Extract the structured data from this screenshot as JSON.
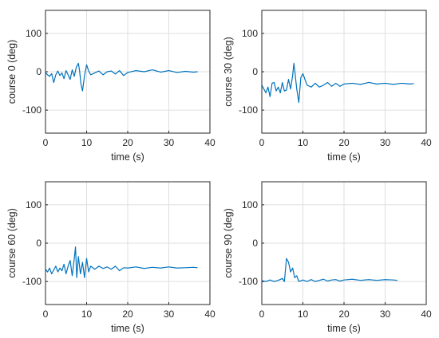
{
  "chart_data": [
    {
      "type": "line",
      "title": "",
      "xlabel": "time (s)",
      "ylabel": "course 0 (deg)",
      "xlim": [
        0,
        40
      ],
      "ylim": [
        -160,
        160
      ],
      "xticks": [
        0,
        10,
        20,
        30,
        40
      ],
      "yticks": [
        100,
        0,
        -100
      ],
      "grid": true,
      "series": [
        {
          "color": "#0072bd",
          "x": [
            0,
            0.5,
            1,
            1.5,
            2,
            2.5,
            3,
            3.5,
            4,
            4.5,
            5,
            5.5,
            6,
            6.5,
            7,
            7.5,
            8,
            8.3,
            8.6,
            9,
            9.5,
            10,
            10.5,
            11,
            12,
            13,
            14,
            15,
            16,
            17,
            18,
            19,
            20,
            22,
            24,
            26,
            28,
            30,
            32,
            34,
            36,
            37
          ],
          "y": [
            -2,
            -8,
            -12,
            -5,
            -28,
            -8,
            2,
            -10,
            -3,
            -18,
            3,
            -8,
            -20,
            5,
            -12,
            12,
            22,
            2,
            -30,
            -50,
            -10,
            18,
            2,
            -8,
            -3,
            2,
            -8,
            0,
            2,
            -6,
            3,
            -10,
            -2,
            3,
            0,
            5,
            -1,
            3,
            -2,
            1,
            -1,
            0
          ]
        }
      ]
    },
    {
      "type": "line",
      "title": "",
      "xlabel": "time (s)",
      "ylabel": "course 30 (deg)",
      "xlim": [
        0,
        40
      ],
      "ylim": [
        -160,
        160
      ],
      "xticks": [
        0,
        10,
        20,
        30,
        40
      ],
      "yticks": [
        100,
        0,
        -100
      ],
      "grid": true,
      "series": [
        {
          "color": "#0072bd",
          "x": [
            0,
            0.5,
            1,
            1.5,
            2,
            2.5,
            3,
            3.5,
            4,
            4.5,
            5,
            5.5,
            6,
            6.5,
            7,
            7.5,
            7.8,
            8.1,
            8.5,
            9,
            9.5,
            10,
            10.5,
            11,
            12,
            13,
            14,
            15,
            16,
            17,
            18,
            19,
            20,
            22,
            24,
            26,
            28,
            30,
            32,
            34,
            36,
            37
          ],
          "y": [
            -35,
            -45,
            -55,
            -40,
            -65,
            -30,
            -28,
            -50,
            -40,
            -55,
            -28,
            -50,
            -48,
            -20,
            -45,
            -10,
            22,
            -5,
            -45,
            -80,
            -15,
            -5,
            -20,
            -35,
            -40,
            -30,
            -40,
            -35,
            -28,
            -38,
            -30,
            -38,
            -32,
            -30,
            -33,
            -28,
            -32,
            -30,
            -33,
            -30,
            -32,
            -31
          ]
        }
      ]
    },
    {
      "type": "line",
      "title": "",
      "xlabel": "time (s)",
      "ylabel": "course 60 (deg)",
      "xlim": [
        0,
        40
      ],
      "ylim": [
        -160,
        160
      ],
      "xticks": [
        0,
        10,
        20,
        30,
        40
      ],
      "yticks": [
        100,
        0,
        -100
      ],
      "grid": true,
      "series": [
        {
          "color": "#0072bd",
          "x": [
            0,
            0.5,
            1,
            1.5,
            2,
            2.5,
            3,
            3.5,
            4,
            4.5,
            5,
            5.5,
            6,
            6.5,
            7,
            7.3,
            7.6,
            8,
            8.5,
            9,
            9.5,
            10,
            10.5,
            11,
            12,
            13,
            14,
            15,
            16,
            17,
            18,
            19,
            20,
            22,
            24,
            26,
            28,
            30,
            32,
            34,
            36,
            37
          ],
          "y": [
            -68,
            -75,
            -65,
            -80,
            -70,
            -60,
            -75,
            -65,
            -72,
            -55,
            -80,
            -60,
            -45,
            -85,
            -40,
            -10,
            -90,
            -35,
            -80,
            -50,
            -90,
            -40,
            -75,
            -60,
            -68,
            -60,
            -66,
            -62,
            -68,
            -60,
            -72,
            -64,
            -65,
            -62,
            -66,
            -63,
            -65,
            -62,
            -65,
            -64,
            -63,
            -64
          ]
        }
      ]
    },
    {
      "type": "line",
      "title": "",
      "xlabel": "time (s)",
      "ylabel": "course 90 (deg)",
      "xlim": [
        0,
        40
      ],
      "ylim": [
        -160,
        160
      ],
      "xticks": [
        0,
        10,
        20,
        30,
        40
      ],
      "yticks": [
        100,
        0,
        -100
      ],
      "grid": true,
      "series": [
        {
          "color": "#0072bd",
          "x": [
            0,
            1,
            2,
            3,
            4,
            5,
            5.5,
            6,
            6.5,
            7,
            7.5,
            8,
            8.5,
            9,
            10,
            11,
            12,
            13,
            14,
            15,
            16,
            17,
            18,
            19,
            20,
            22,
            24,
            26,
            28,
            30,
            32,
            33
          ],
          "y": [
            -98,
            -100,
            -96,
            -100,
            -97,
            -92,
            -100,
            -40,
            -50,
            -75,
            -65,
            -90,
            -85,
            -100,
            -96,
            -100,
            -95,
            -100,
            -97,
            -94,
            -99,
            -96,
            -95,
            -99,
            -96,
            -94,
            -97,
            -95,
            -97,
            -95,
            -96,
            -97
          ]
        }
      ]
    }
  ]
}
